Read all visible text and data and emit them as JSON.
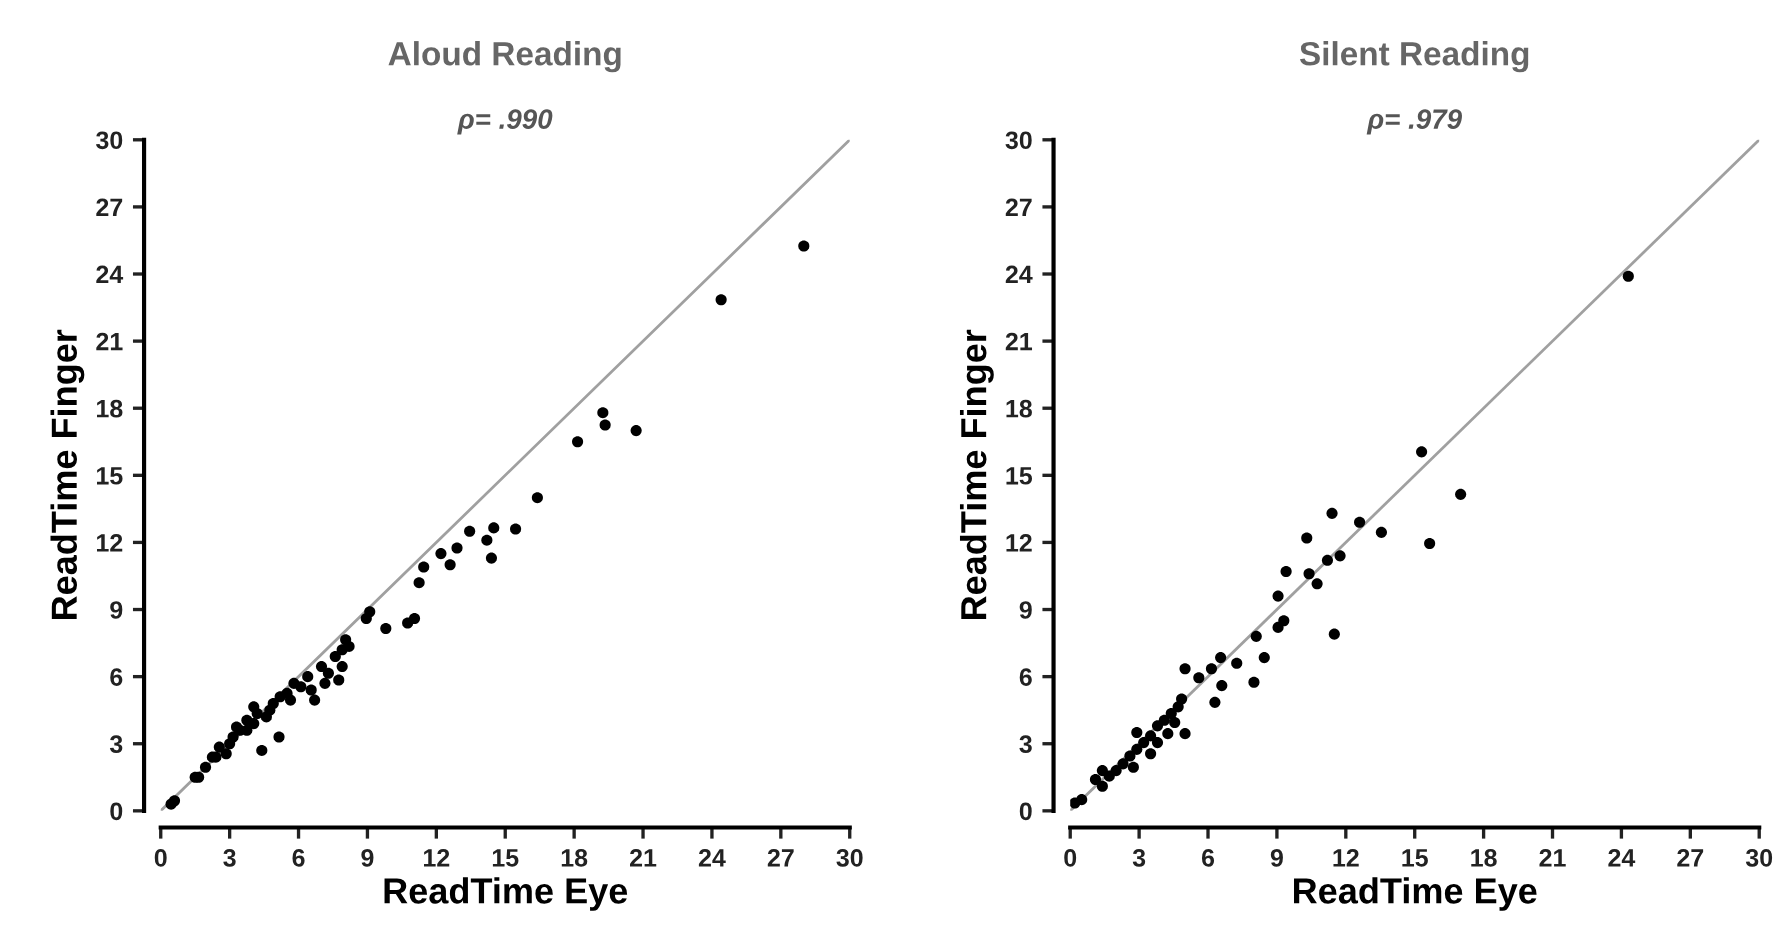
{
  "chart_data": [
    {
      "type": "scatter",
      "title": "Aloud Reading",
      "subtitle": "ρ= .990",
      "xlabel": "ReadTime Eye",
      "ylabel": "ReadTime Finger",
      "xlim": [
        0,
        30
      ],
      "ylim": [
        0,
        30
      ],
      "xticks": [
        0,
        3,
        6,
        9,
        12,
        15,
        18,
        21,
        24,
        27,
        30
      ],
      "yticks": [
        0,
        3,
        6,
        9,
        12,
        15,
        18,
        21,
        24,
        27,
        30
      ],
      "grid": false,
      "marker": "circle",
      "series": [
        {
          "color": "#000000",
          "x": [
            28.0,
            24.4,
            19.25,
            19.35,
            20.7,
            18.15,
            16.4,
            14.5,
            14.2,
            14.4,
            13.45,
            15.45,
            12.9,
            12.6,
            12.2,
            11.45,
            11.25,
            11.05,
            10.75,
            9.8,
            9.1,
            8.95,
            8.2,
            7.9,
            7.3,
            6.7,
            6.1,
            5.2,
            4.4,
            5.15,
            0.6,
            1.65,
            2.85,
            3.75,
            4.6,
            7.9,
            7.6,
            7.0,
            6.4,
            5.8,
            5.5,
            4.9,
            4.2,
            3.75,
            3.45,
            3.15,
            2.55,
            2.25,
            1.95,
            1.5,
            0.45,
            7.75,
            8.05,
            7.15,
            6.55,
            5.65,
            4.75,
            4.05,
            3.0,
            2.4,
            3.3,
            4.05
          ],
          "values": [
            25.25,
            22.85,
            17.8,
            17.25,
            17.0,
            16.5,
            14.0,
            12.65,
            12.1,
            11.3,
            12.5,
            12.6,
            11.75,
            11.0,
            11.5,
            10.9,
            10.2,
            8.6,
            8.4,
            8.15,
            8.9,
            8.6,
            7.35,
            6.45,
            6.15,
            4.95,
            5.55,
            5.1,
            2.7,
            3.3,
            0.45,
            1.5,
            2.55,
            3.6,
            4.2,
            7.2,
            6.9,
            6.45,
            6.0,
            5.7,
            5.25,
            4.8,
            4.35,
            4.05,
            3.6,
            3.3,
            2.85,
            2.4,
            1.95,
            1.5,
            0.3,
            5.85,
            7.65,
            5.7,
            5.4,
            4.95,
            4.5,
            3.9,
            3.0,
            2.4,
            3.75,
            4.65
          ]
        },
        {
          "type": "line",
          "color": "#a0a0a0",
          "marker": "none",
          "x": [
            0,
            30
          ],
          "values": [
            0,
            30
          ]
        }
      ]
    },
    {
      "type": "scatter",
      "title": "Silent Reading",
      "subtitle": "ρ= .979",
      "xlabel": "ReadTime Eye",
      "ylabel": "ReadTime Finger",
      "xlim": [
        0,
        30
      ],
      "ylim": [
        0,
        30
      ],
      "xticks": [
        0,
        3,
        6,
        9,
        12,
        15,
        18,
        21,
        24,
        27,
        30
      ],
      "yticks": [
        0,
        3,
        6,
        9,
        12,
        15,
        18,
        21,
        24,
        27,
        30
      ],
      "grid": false,
      "marker": "circle",
      "series": [
        {
          "color": "#000000",
          "x": [
            24.3,
            15.3,
            17.0,
            15.65,
            11.4,
            12.6,
            13.55,
            10.3,
            11.2,
            11.75,
            10.4,
            10.75,
            9.4,
            9.05,
            11.5,
            9.3,
            9.05,
            8.1,
            8.45,
            8.0,
            7.25,
            6.6,
            6.3,
            6.55,
            6.15,
            5.6,
            5.0,
            5.0,
            0.2,
            0.5,
            1.1,
            1.4,
            1.7,
            2.0,
            2.3,
            2.6,
            2.9,
            3.2,
            3.5,
            3.8,
            4.1,
            4.4,
            4.7,
            2.9,
            3.8,
            4.55,
            4.85,
            2.75,
            1.4,
            3.5,
            4.25
          ],
          "values": [
            23.9,
            16.05,
            14.15,
            11.95,
            13.3,
            12.9,
            12.45,
            12.2,
            11.2,
            11.4,
            10.6,
            10.15,
            10.7,
            9.6,
            7.9,
            8.5,
            8.2,
            7.8,
            6.85,
            5.75,
            6.6,
            5.6,
            4.85,
            6.85,
            6.35,
            5.95,
            6.35,
            3.45,
            0.35,
            0.5,
            1.4,
            1.1,
            1.55,
            1.8,
            2.1,
            2.45,
            2.75,
            3.05,
            3.35,
            3.8,
            4.05,
            4.35,
            4.65,
            3.5,
            3.05,
            3.95,
            5.0,
            1.95,
            1.8,
            2.55,
            3.45
          ]
        },
        {
          "type": "line",
          "color": "#a0a0a0",
          "marker": "none",
          "x": [
            0,
            30
          ],
          "values": [
            0,
            30
          ]
        }
      ]
    }
  ]
}
